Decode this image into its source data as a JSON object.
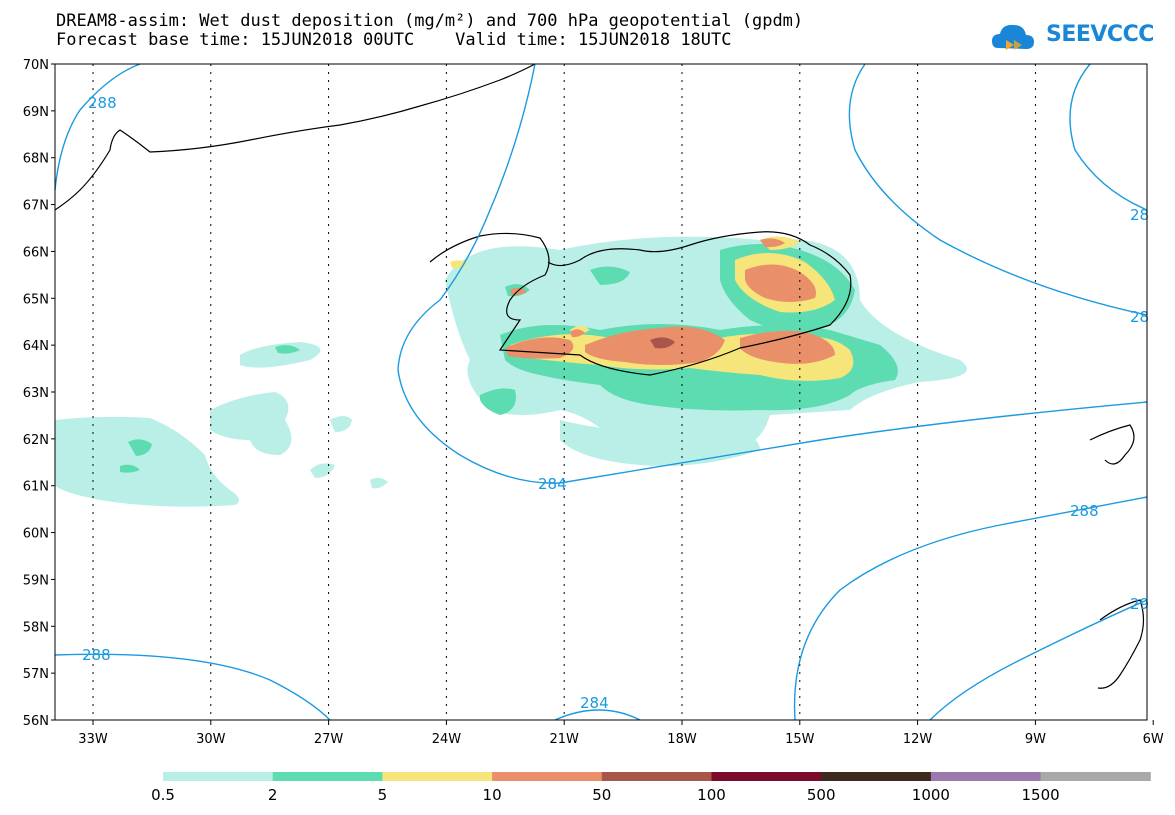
{
  "title_line1": "DREAM8-assim: Wet dust deposition (mg/m²) and 700 hPa geopotential (gpdm)",
  "title_line2": "Forecast base time: 15JUN2018 00UTC    Valid time: 15JUN2018 18UTC",
  "logo_text": "SEEVCCC",
  "colors": {
    "c05": "#b9efe6",
    "c2": "#5cdcb0",
    "c5": "#f5e57a",
    "c10": "#e9906a",
    "c50": "#a8564c",
    "c100": "#7a0b2b",
    "c500": "#3d2a1e",
    "c1000": "#9b79ad",
    "c1500": "#a9a9a9",
    "contour": "#1b9ae0"
  },
  "map": {
    "lat_labels": [
      "70N",
      "69N",
      "68N",
      "67N",
      "66N",
      "65N",
      "64N",
      "63N",
      "62N",
      "61N",
      "60N",
      "59N",
      "58N",
      "57N",
      "56N"
    ],
    "lon_labels": [
      "33W",
      "30W",
      "27W",
      "24W",
      "21W",
      "18W",
      "15W",
      "12W",
      "9W",
      "6W"
    ],
    "contour_labels": [
      "288",
      "284",
      "288",
      "284",
      "288",
      "28",
      "28",
      "29"
    ]
  },
  "colorbar": {
    "labels": [
      "0.5",
      "2",
      "5",
      "10",
      "50",
      "100",
      "500",
      "1000",
      "1500"
    ]
  }
}
